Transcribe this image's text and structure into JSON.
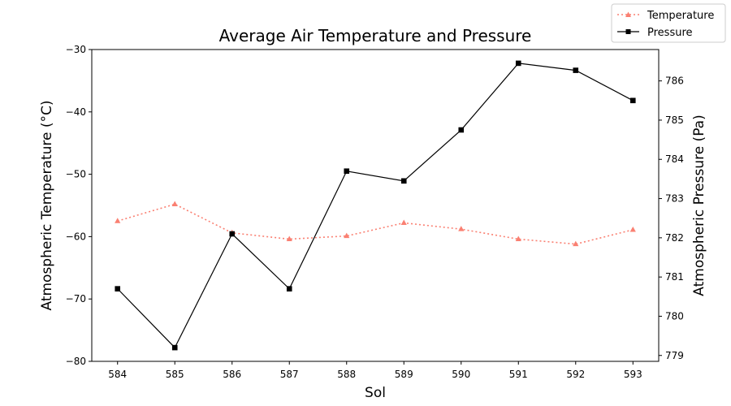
{
  "chart_data": {
    "type": "line",
    "title": "Average Air Temperature and Pressure",
    "xlabel": "Sol",
    "ylabel_left": "Atmospheric Temperature (°C)",
    "ylabel_right": "Atmospheric Pressure (Pa)",
    "x": [
      584,
      585,
      586,
      587,
      588,
      589,
      590,
      591,
      592,
      593
    ],
    "xlim": [
      583.55,
      593.45
    ],
    "ylim_left": [
      -80,
      -30
    ],
    "ylim_right": [
      778.85,
      786.8
    ],
    "left_ticks": [
      -80,
      -70,
      -60,
      -50,
      -40,
      -30
    ],
    "right_ticks": [
      779,
      780,
      781,
      782,
      783,
      784,
      785,
      786
    ],
    "grid": false,
    "legend_position": "top-right",
    "series": [
      {
        "name": "Temperature",
        "axis": "left",
        "color": "#fa8072",
        "line_style": "dotted",
        "marker": "triangle",
        "values": [
          -57.5,
          -54.8,
          -59.4,
          -60.4,
          -59.9,
          -57.8,
          -58.8,
          -60.4,
          -61.2,
          -58.9
        ]
      },
      {
        "name": "Pressure",
        "axis": "right",
        "color": "#000000",
        "line_style": "solid",
        "marker": "square",
        "values": [
          780.7,
          779.2,
          782.1,
          780.7,
          783.7,
          783.45,
          784.75,
          786.45,
          786.27,
          785.5
        ]
      }
    ]
  }
}
